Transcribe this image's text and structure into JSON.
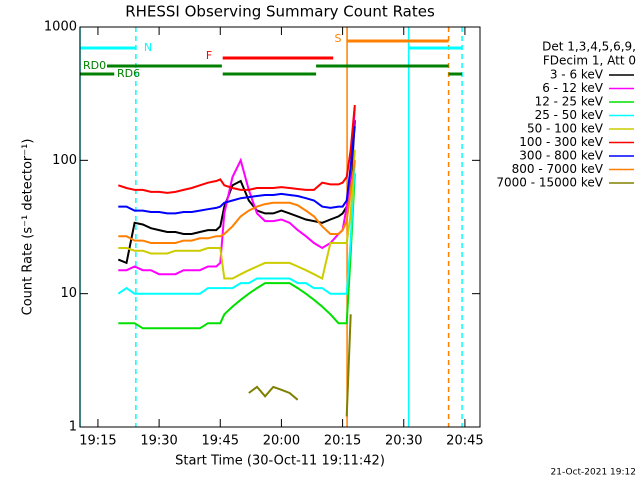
{
  "chart_data": {
    "type": "line",
    "title": "RHESSI Observing Summary Count Rates",
    "xlabel": "Start Time (30-Oct-11 19:11:42)",
    "ylabel": "Count Rate (s⁻¹ detector⁻¹)",
    "legend_title": [
      "Det 1,3,4,5,6,9,",
      "FDecim 1, Att 0"
    ],
    "footer": "21-Oct-2021 19:12",
    "log_y": true,
    "xlim": [
      10.6,
      108.7
    ],
    "ylim": [
      1,
      1000
    ],
    "xticks": [
      {
        "value": 15,
        "label": "19:15"
      },
      {
        "value": 30,
        "label": "19:30"
      },
      {
        "value": 45,
        "label": "19:45"
      },
      {
        "value": 60,
        "label": "20:00"
      },
      {
        "value": 75,
        "label": "20:15"
      },
      {
        "value": 90,
        "label": "20:30"
      },
      {
        "value": 105,
        "label": "20:45"
      }
    ],
    "yticks": [
      1,
      10,
      100,
      1000
    ],
    "x": [
      20,
      22,
      24,
      26,
      28,
      30,
      32,
      34,
      36,
      38,
      40,
      42,
      44,
      45,
      46,
      48,
      50,
      52,
      54,
      56,
      58,
      60,
      62,
      64,
      66,
      68,
      70,
      72,
      74,
      75,
      76,
      77,
      78
    ],
    "series": [
      {
        "name": "3 - 6 keV",
        "color": "#000000",
        "values": [
          18,
          17,
          34,
          33,
          31,
          30,
          29,
          29,
          28,
          28,
          29,
          30,
          30,
          32,
          45,
          65,
          70,
          50,
          42,
          40,
          40,
          42,
          40,
          38,
          36,
          35,
          34,
          36,
          38,
          40,
          45,
          60,
          200
        ]
      },
      {
        "name": "6 - 12 keV",
        "color": "#ff00ff",
        "values": [
          15,
          15,
          16,
          15,
          15,
          14,
          14,
          14,
          15,
          15,
          15,
          16,
          16,
          17,
          40,
          75,
          100,
          60,
          40,
          35,
          35,
          36,
          34,
          30,
          27,
          24,
          22,
          24,
          28,
          30,
          45,
          80,
          250
        ]
      },
      {
        "name": "12 - 25 keV",
        "color": "#00e000",
        "values": [
          6,
          6,
          6,
          5.5,
          5.5,
          5.5,
          5.5,
          5.5,
          5.5,
          5.5,
          5.5,
          6,
          6,
          6,
          7,
          8,
          9,
          10,
          11,
          12,
          12,
          12,
          12,
          11,
          10,
          9,
          8,
          7,
          6,
          6,
          6,
          20,
          80
        ]
      },
      {
        "name": "25 - 50 keV",
        "color": "#00ffff",
        "values": [
          10,
          11,
          10,
          10,
          10,
          10,
          10,
          10,
          10,
          10,
          10,
          11,
          11,
          11,
          11,
          11,
          12,
          12,
          13,
          13,
          13,
          13,
          13,
          12,
          12,
          11,
          11,
          10,
          10,
          10,
          10,
          25,
          100
        ]
      },
      {
        "name": "50 - 100 keV",
        "color": "#cccc00",
        "values": [
          22,
          22,
          21,
          21,
          20,
          20,
          20,
          21,
          21,
          21,
          21,
          22,
          22,
          22,
          13,
          13,
          14,
          15,
          16,
          17,
          17,
          17,
          17,
          16,
          15,
          14,
          13,
          24,
          24,
          24,
          24,
          40,
          120
        ]
      },
      {
        "name": "100 - 300 keV",
        "color": "#ff0000",
        "values": [
          65,
          62,
          60,
          60,
          58,
          58,
          57,
          58,
          60,
          62,
          65,
          68,
          70,
          72,
          65,
          62,
          60,
          60,
          62,
          62,
          62,
          63,
          62,
          61,
          60,
          60,
          68,
          66,
          66,
          68,
          75,
          120,
          260
        ]
      },
      {
        "name": "300 - 800 keV",
        "color": "#0000ff",
        "values": [
          45,
          45,
          42,
          42,
          41,
          41,
          40,
          40,
          41,
          41,
          42,
          43,
          44,
          45,
          48,
          50,
          52,
          53,
          54,
          55,
          55,
          56,
          55,
          54,
          52,
          50,
          45,
          44,
          45,
          45,
          50,
          90,
          180
        ]
      },
      {
        "name": "800 - 7000 keV",
        "color": "#ff8000",
        "values": [
          27,
          27,
          25,
          25,
          24,
          24,
          24,
          24,
          25,
          25,
          26,
          26,
          27,
          27,
          28,
          32,
          38,
          42,
          45,
          47,
          48,
          48,
          48,
          46,
          42,
          38,
          32,
          28,
          28,
          30,
          35,
          60,
          100
        ]
      },
      {
        "name": "7000 - 15000 keV",
        "color": "#808000",
        "values": [
          null,
          null,
          null,
          null,
          null,
          null,
          null,
          null,
          null,
          null,
          null,
          null,
          null,
          null,
          null,
          null,
          null,
          1.8,
          2,
          1.7,
          2,
          1.9,
          1.8,
          1.6,
          null,
          null,
          null,
          null,
          null,
          null,
          1.2,
          7,
          null
        ]
      }
    ],
    "flags": [
      {
        "name": "N",
        "color": "#00ffff",
        "segments": [
          [
            10.6,
            24.3
          ],
          [
            91.2,
            104.3
          ]
        ]
      },
      {
        "name": "F",
        "color": "#ff0000",
        "segments": [
          [
            45.6,
            72.7
          ]
        ]
      },
      {
        "name": "S",
        "color": "#ff8000",
        "segments": [
          [
            76.1,
            101
          ]
        ]
      },
      {
        "name": "RD0",
        "color": "#008000",
        "segments": [
          [
            10.6,
            45.4
          ],
          [
            68.5,
            101
          ]
        ]
      },
      {
        "name": "RD6",
        "color": "#008000",
        "segments": [
          [
            10.6,
            19
          ],
          [
            45.6,
            68.5
          ],
          [
            101,
            104.3
          ]
        ]
      }
    ],
    "markers": [
      {
        "x": 10.6,
        "color": "#00ffff",
        "dashed": false
      },
      {
        "x": 24.3,
        "color": "#00ffff",
        "dashed": true
      },
      {
        "x": 91.2,
        "color": "#00ffff",
        "dashed": false
      },
      {
        "x": 104.3,
        "color": "#00ffff",
        "dashed": true
      },
      {
        "x": 76.1,
        "color": "#ff8000",
        "dashed": false
      },
      {
        "x": 101,
        "color": "#ff8000",
        "dashed": true
      }
    ]
  }
}
